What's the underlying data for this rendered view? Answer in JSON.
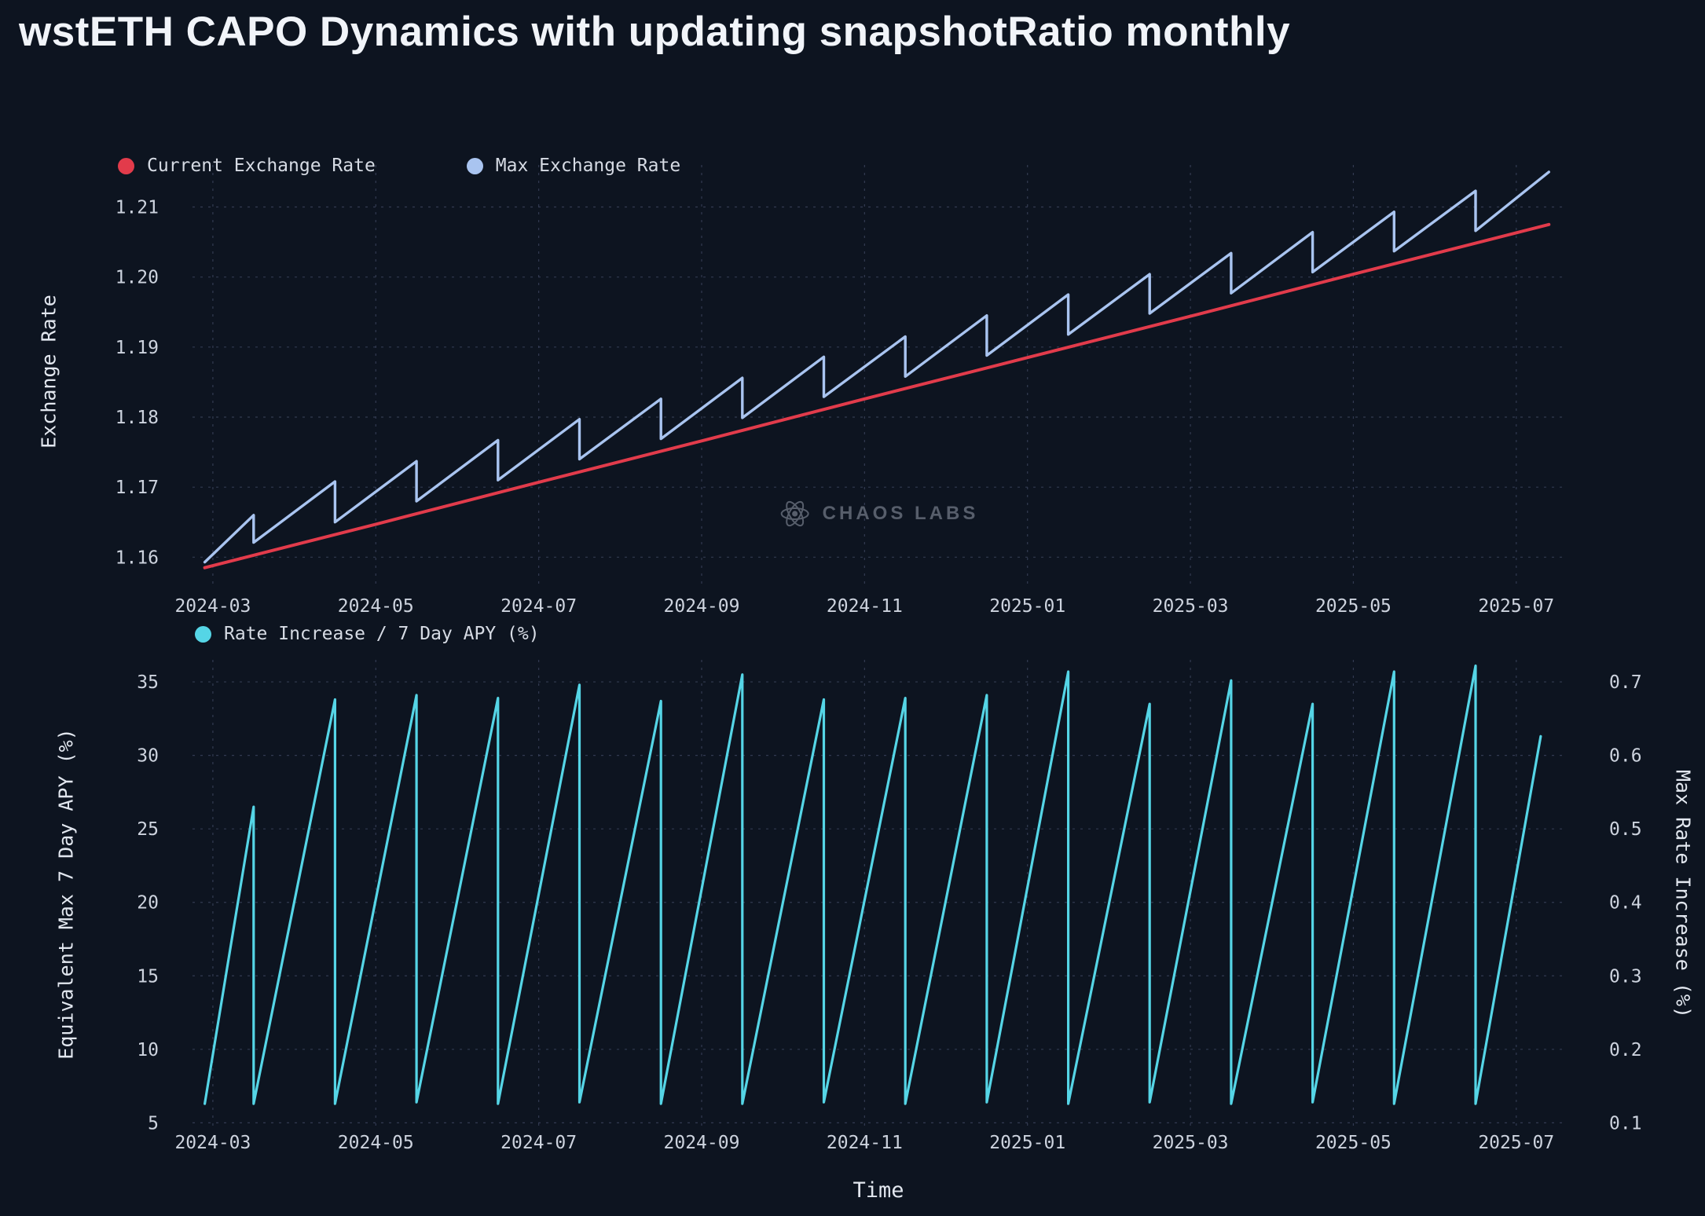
{
  "title": "wstETH CAPO Dynamics with updating snapshotRatio monthly",
  "watermark": "CHAOS LABS",
  "colors": {
    "background": "#0d1420",
    "grid": "#39415a",
    "tick_text": "#cdd3de",
    "title_text": "#f1f4f9",
    "watermark_text": "#5b6370",
    "current_exchange_rate": "#e23b4b",
    "max_exchange_rate": "#a9c4f0",
    "rate_increase": "#55d5e6"
  },
  "chart_data": [
    {
      "type": "line",
      "title": "Exchange Rate vs Time",
      "ylabel": "Exchange Rate",
      "x_note": "x in month index: 1 = 2024-03, 17 = 2025-07",
      "xlim": [
        0.75,
        17.6
      ],
      "ylim": [
        1.156,
        1.216
      ],
      "grid": true,
      "legend_position": "top-left",
      "x_ticks": {
        "values": [
          1,
          3,
          5,
          7,
          9,
          11,
          13,
          15,
          17
        ],
        "labels": [
          "2024-03",
          "2024-05",
          "2024-07",
          "2024-09",
          "2024-11",
          "2025-01",
          "2025-03",
          "2025-05",
          "2025-07"
        ]
      },
      "y_ticks": {
        "values": [
          1.16,
          1.17,
          1.18,
          1.19,
          1.2,
          1.21
        ],
        "labels": [
          "1.16",
          "1.17",
          "1.18",
          "1.19",
          "1.20",
          "1.21"
        ]
      },
      "series": [
        {
          "name": "Current Exchange Rate",
          "color": "#e23b4b",
          "points": [
            [
              0.9,
              1.1585
            ],
            [
              3,
              1.1647
            ],
            [
              5,
              1.1707
            ],
            [
              7,
              1.1766
            ],
            [
              9,
              1.1826
            ],
            [
              11,
              1.1885
            ],
            [
              13,
              1.1944
            ],
            [
              15,
              1.2004
            ],
            [
              17.4,
              1.2075
            ]
          ]
        },
        {
          "name": "Max Exchange Rate",
          "color": "#a9c4f0",
          "points": [
            [
              0.9,
              1.1593
            ],
            [
              1.5,
              1.166
            ],
            [
              1.5,
              1.1621
            ],
            [
              2.5,
              1.1708
            ],
            [
              2.5,
              1.165
            ],
            [
              3.5,
              1.1737
            ],
            [
              3.5,
              1.168
            ],
            [
              4.5,
              1.1767
            ],
            [
              4.5,
              1.171
            ],
            [
              5.5,
              1.1797
            ],
            [
              5.5,
              1.174
            ],
            [
              6.5,
              1.1826
            ],
            [
              6.5,
              1.1769
            ],
            [
              7.5,
              1.1856
            ],
            [
              7.5,
              1.1799
            ],
            [
              8.5,
              1.1886
            ],
            [
              8.5,
              1.1829
            ],
            [
              9.5,
              1.1915
            ],
            [
              9.5,
              1.1858
            ],
            [
              10.5,
              1.1945
            ],
            [
              10.5,
              1.1888
            ],
            [
              11.5,
              1.1975
            ],
            [
              11.5,
              1.1918
            ],
            [
              12.5,
              1.2004
            ],
            [
              12.5,
              1.1948
            ],
            [
              13.5,
              1.2034
            ],
            [
              13.5,
              1.1977
            ],
            [
              14.5,
              1.2064
            ],
            [
              14.5,
              1.2007
            ],
            [
              15.5,
              1.2093
            ],
            [
              15.5,
              1.2037
            ],
            [
              16.5,
              1.2123
            ],
            [
              16.5,
              1.2066
            ],
            [
              17.4,
              1.215
            ]
          ]
        }
      ]
    },
    {
      "type": "line",
      "title": "Equivalent Max 7 Day APY / Max Rate Increase vs Time",
      "xlabel": "Time",
      "ylabel": "Equivalent Max 7 Day APY (%)",
      "ylabel_right": "Max Rate Increase (%)",
      "x_note": "x in month index: 1 = 2024-03, 17 = 2025-07",
      "xlim": [
        0.75,
        17.6
      ],
      "ylim": [
        4.7,
        36.5
      ],
      "ylim_right": [
        0.094,
        0.73
      ],
      "grid": true,
      "legend_position": "top-left",
      "x_ticks": {
        "values": [
          1,
          3,
          5,
          7,
          9,
          11,
          13,
          15,
          17
        ],
        "labels": [
          "2024-03",
          "2024-05",
          "2024-07",
          "2024-09",
          "2024-11",
          "2025-01",
          "2025-03",
          "2025-05",
          "2025-07"
        ]
      },
      "y_ticks": {
        "values": [
          5,
          10,
          15,
          20,
          25,
          30,
          35
        ],
        "labels": [
          "5",
          "10",
          "15",
          "20",
          "25",
          "30",
          "35"
        ]
      },
      "y_ticks_right": {
        "values": [
          0.1,
          0.2,
          0.3,
          0.4,
          0.5,
          0.6,
          0.7
        ],
        "labels": [
          "0.1",
          "0.2",
          "0.3",
          "0.4",
          "0.5",
          "0.6",
          "0.7"
        ]
      },
      "series": [
        {
          "name": "Rate Increase / 7 Day APY (%)",
          "color": "#55d5e6",
          "points": [
            [
              0.9,
              6.3
            ],
            [
              1.5,
              26.5
            ],
            [
              1.5,
              6.3
            ],
            [
              2.5,
              33.8
            ],
            [
              2.5,
              6.3
            ],
            [
              3.5,
              34.1
            ],
            [
              3.5,
              6.4
            ],
            [
              4.5,
              33.9
            ],
            [
              4.5,
              6.3
            ],
            [
              5.5,
              34.8
            ],
            [
              5.5,
              6.4
            ],
            [
              6.5,
              33.7
            ],
            [
              6.5,
              6.3
            ],
            [
              7.5,
              35.5
            ],
            [
              7.5,
              6.3
            ],
            [
              8.5,
              33.8
            ],
            [
              8.5,
              6.4
            ],
            [
              9.5,
              33.9
            ],
            [
              9.5,
              6.3
            ],
            [
              10.5,
              34.1
            ],
            [
              10.5,
              6.4
            ],
            [
              11.5,
              35.7
            ],
            [
              11.5,
              6.3
            ],
            [
              12.5,
              33.5
            ],
            [
              12.5,
              6.4
            ],
            [
              13.5,
              35.1
            ],
            [
              13.5,
              6.3
            ],
            [
              14.5,
              33.5
            ],
            [
              14.5,
              6.4
            ],
            [
              15.5,
              35.7
            ],
            [
              15.5,
              6.3
            ],
            [
              16.5,
              36.1
            ],
            [
              16.5,
              6.3
            ],
            [
              17.3,
              31.3
            ]
          ]
        }
      ]
    }
  ]
}
